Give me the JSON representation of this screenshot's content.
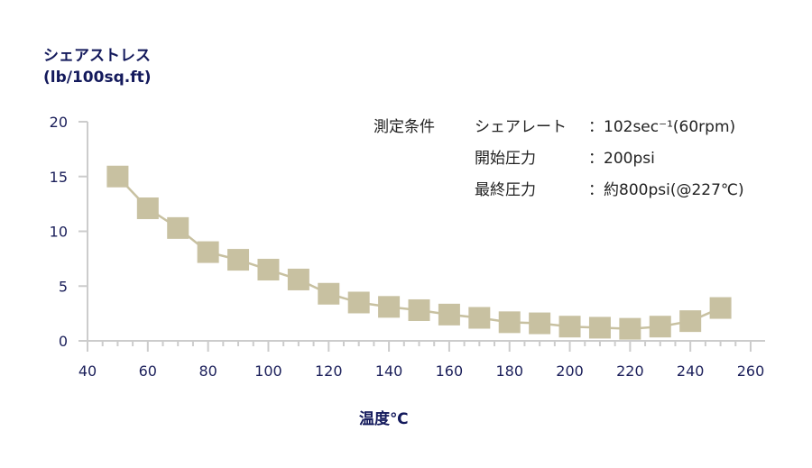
{
  "chart_data": {
    "type": "line",
    "title": "",
    "ylabel": "シェアストレス (lb/100sq.ft)",
    "ylabel_lines": [
      "シェアストレス",
      "(lb/100sq.ft)"
    ],
    "xlabel": "温度℃",
    "xlim": [
      40,
      260
    ],
    "ylim": [
      0,
      20
    ],
    "x_ticks": [
      40,
      60,
      80,
      100,
      120,
      140,
      160,
      180,
      200,
      220,
      240,
      260
    ],
    "y_ticks": [
      0,
      5,
      10,
      15,
      20
    ],
    "grid": false,
    "marker": "square",
    "series": [
      {
        "name": "シェアストレス",
        "color": "#c8c1a1",
        "x": [
          50,
          60,
          70,
          80,
          90,
          100,
          110,
          120,
          130,
          140,
          150,
          160,
          170,
          180,
          190,
          200,
          210,
          220,
          230,
          240,
          250
        ],
        "values": [
          15.0,
          12.1,
          10.3,
          8.1,
          7.4,
          6.5,
          5.6,
          4.3,
          3.5,
          3.1,
          2.8,
          2.4,
          2.1,
          1.7,
          1.6,
          1.3,
          1.2,
          1.1,
          1.3,
          1.8,
          3.0
        ]
      }
    ],
    "annotations": {
      "heading": "測定条件",
      "rows": [
        {
          "label": "シェアレート",
          "value": "：102sec⁻¹(60rpm)"
        },
        {
          "label": "開始圧力",
          "value": "：200psi"
        },
        {
          "label": "最終圧力",
          "value": "：約800psi(@227℃)"
        }
      ]
    }
  },
  "colors": {
    "marker": "#c8c1a1",
    "axis": "#cccccc",
    "text": "#1b1f5a"
  }
}
